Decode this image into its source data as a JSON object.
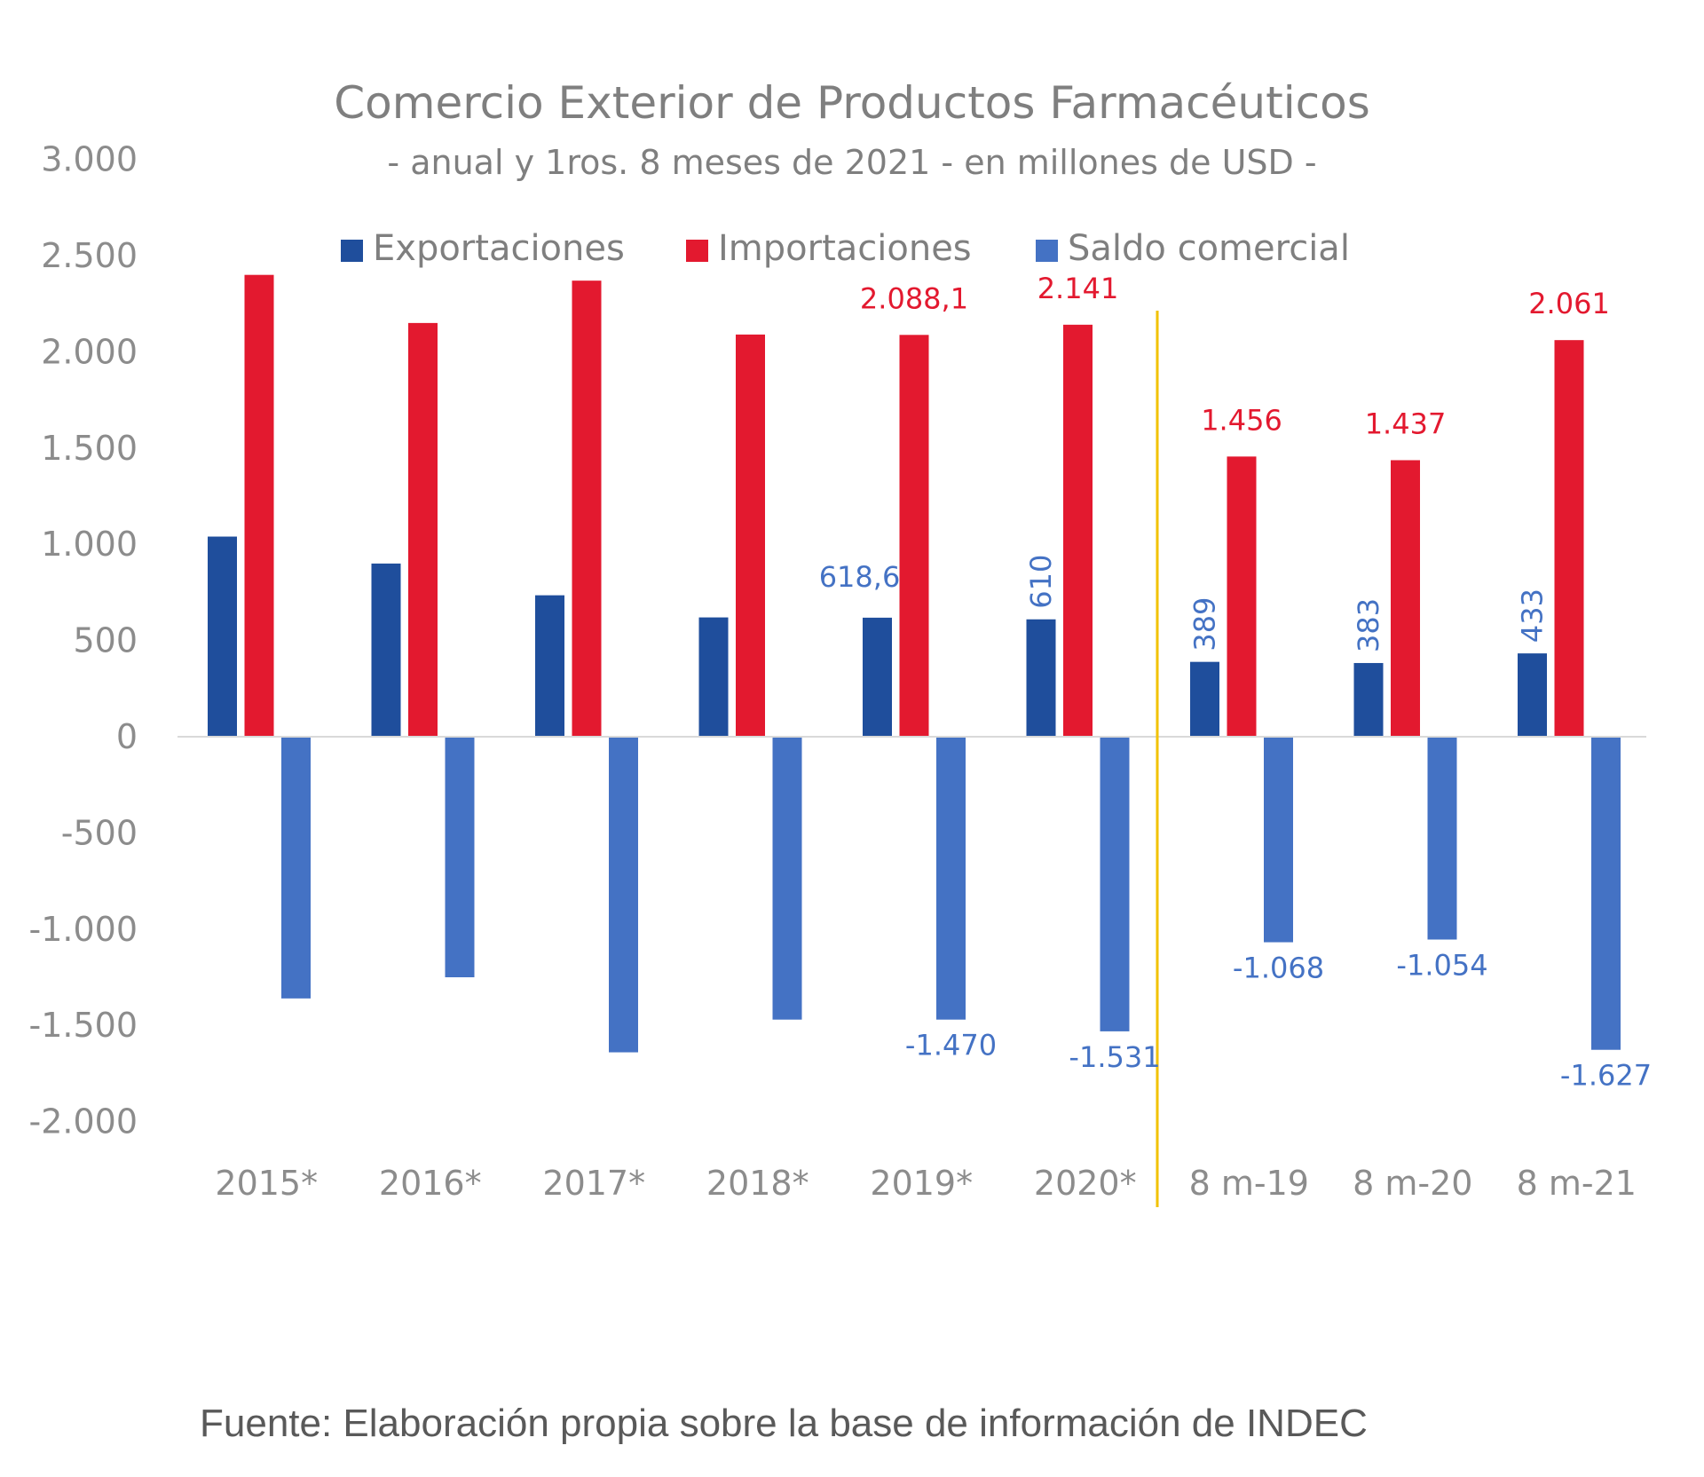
{
  "chart_data": {
    "type": "bar",
    "title": "Comercio Exterior de Productos Farmacéuticos",
    "subtitle": "- anual y 1ros. 8 meses de 2021 - en millones de USD -",
    "categories": [
      "2015*",
      "2016*",
      "2017*",
      "2018*",
      "2019*",
      "2020*",
      "8 m-19",
      "8 m-20",
      "8 m-21"
    ],
    "series": [
      {
        "name": "Exportaciones",
        "color": "#1f4e9c",
        "values": [
          1040,
          900,
          735,
          620,
          618.6,
          610,
          389,
          383,
          433
        ]
      },
      {
        "name": "Importaciones",
        "color": "#e3192f",
        "values": [
          2400,
          2150,
          2370,
          2090,
          2088.1,
          2141,
          1456,
          1437,
          2061
        ]
      },
      {
        "name": "Saldo comercial",
        "color": "#4472c4",
        "values": [
          -1360,
          -1250,
          -1640,
          -1470,
          -1470,
          -1531,
          -1068,
          -1054,
          -1627
        ]
      }
    ],
    "data_labels": [
      {
        "series": 0,
        "index": 4,
        "text": "618,6",
        "color": "#4472c4",
        "rotated": false
      },
      {
        "series": 0,
        "index": 5,
        "text": "610",
        "color": "#4472c4",
        "rotated": true
      },
      {
        "series": 0,
        "index": 6,
        "text": "389",
        "color": "#4472c4",
        "rotated": true
      },
      {
        "series": 0,
        "index": 7,
        "text": "383",
        "color": "#4472c4",
        "rotated": true
      },
      {
        "series": 0,
        "index": 8,
        "text": "433",
        "color": "#4472c4",
        "rotated": true
      },
      {
        "series": 1,
        "index": 4,
        "text": "2.088,1",
        "color": "#e3192f",
        "rotated": false
      },
      {
        "series": 1,
        "index": 5,
        "text": "2.141",
        "color": "#e3192f",
        "rotated": false
      },
      {
        "series": 1,
        "index": 6,
        "text": "1.456",
        "color": "#e3192f",
        "rotated": false
      },
      {
        "series": 1,
        "index": 7,
        "text": "1.437",
        "color": "#e3192f",
        "rotated": false
      },
      {
        "series": 1,
        "index": 8,
        "text": "2.061",
        "color": "#e3192f",
        "rotated": false
      },
      {
        "series": 2,
        "index": 4,
        "text": "-1.470",
        "color": "#4472c4",
        "rotated": false
      },
      {
        "series": 2,
        "index": 5,
        "text": "-1.531",
        "color": "#4472c4",
        "rotated": false
      },
      {
        "series": 2,
        "index": 6,
        "text": "-1.068",
        "color": "#4472c4",
        "rotated": false
      },
      {
        "series": 2,
        "index": 7,
        "text": "-1.054",
        "color": "#4472c4",
        "rotated": false
      },
      {
        "series": 2,
        "index": 8,
        "text": "-1.627",
        "color": "#4472c4",
        "rotated": false
      }
    ],
    "yticks": [
      3000,
      2500,
      2000,
      1500,
      1000,
      500,
      0,
      -500,
      -1000,
      -1500,
      -2000
    ],
    "ytick_labels": [
      "3.000",
      "2.500",
      "2.000",
      "1.500",
      "1.000",
      "500",
      "0",
      "-500",
      "-1.000",
      "-1.500",
      "-2.000"
    ],
    "ylim": [
      -2000,
      3000
    ],
    "grid": false,
    "legend_position": "top",
    "separator": {
      "after_category_index": 5,
      "color": "#f2c200"
    },
    "axis_color": "#d9d9d9"
  },
  "source_note": "Fuente: Elaboración propia sobre la base de información de  INDEC"
}
